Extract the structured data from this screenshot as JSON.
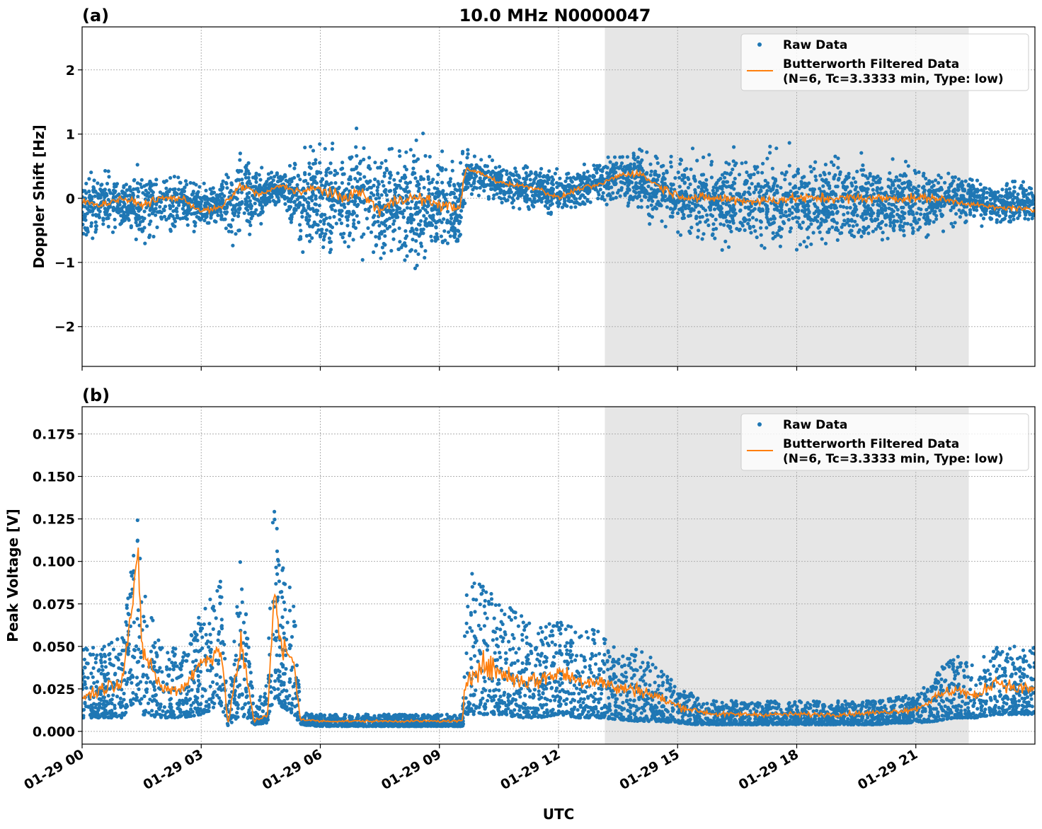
{
  "title": "10.0 MHz N0000047",
  "xlabel": "UTC",
  "colors": {
    "raw": "#1f77b4",
    "filtered": "#ff7f0e",
    "shade": "#e6e6e6"
  },
  "legend": {
    "raw": "Raw Data",
    "filtered_line1": "Butterworth Filtered Data",
    "filtered_line2": "(N=6, Tc=3.3333 min, Type: low)",
    "placement": "top-right"
  },
  "xaxis": {
    "range": [
      "01-29 00:00",
      "01-30 00:00"
    ],
    "ticks": [
      "01-29 00",
      "01-29 03",
      "01-29 06",
      "01-29 09",
      "01-29 12",
      "01-29 15",
      "01-29 18",
      "01-29 21"
    ]
  },
  "chart_data": [
    {
      "type": "scatter+line",
      "panel_label": "(a)",
      "ylabel": "Doppler Shift [Hz]",
      "ylim": [
        -2.62,
        2.67
      ],
      "yticks": [
        "2",
        "1",
        "0",
        "−1",
        "−2"
      ],
      "ytick_values": [
        2,
        1,
        0,
        -1,
        -2
      ],
      "grid": true,
      "shaded_span": [
        "01-29 13:10",
        "01-29 22:20"
      ],
      "x": [
        "00:00",
        "00:30",
        "01:00",
        "01:30",
        "02:00",
        "02:30",
        "03:00",
        "03:30",
        "04:00",
        "04:30",
        "05:00",
        "05:30",
        "06:00",
        "06:30",
        "07:00",
        "07:30",
        "08:00",
        "08:30",
        "09:00",
        "09:30",
        "09:40",
        "10:00",
        "10:30",
        "11:00",
        "11:30",
        "12:00",
        "12:30",
        "13:00",
        "13:30",
        "14:00",
        "14:30",
        "15:00",
        "15:30",
        "16:00",
        "17:00",
        "18:00",
        "19:00",
        "20:00",
        "21:00",
        "21:30",
        "22:00",
        "22:30",
        "23:00",
        "23:30",
        "24:00"
      ],
      "filtered": [
        -0.05,
        -0.1,
        0.0,
        -0.1,
        0.0,
        0.0,
        -0.2,
        -0.15,
        0.2,
        0.05,
        0.2,
        0.1,
        0.15,
        0.0,
        0.1,
        -0.2,
        0.0,
        0.0,
        -0.1,
        -0.15,
        0.45,
        0.4,
        0.25,
        0.2,
        0.15,
        0.0,
        0.15,
        0.2,
        0.35,
        0.4,
        0.2,
        0.05,
        0.0,
        0.0,
        -0.05,
        0.0,
        0.0,
        0.0,
        0.0,
        0.0,
        -0.05,
        -0.1,
        -0.15,
        -0.15,
        -0.2
      ],
      "raw_lower": [
        -0.8,
        -0.8,
        -0.7,
        -0.9,
        -0.7,
        -0.6,
        -0.7,
        -0.6,
        -1.0,
        -0.5,
        -0.2,
        -1.0,
        -1.1,
        -1.1,
        -1.2,
        -1.3,
        -1.3,
        -1.3,
        -1.2,
        -1.1,
        -0.1,
        -0.1,
        -0.2,
        -0.3,
        -0.3,
        -0.4,
        -0.3,
        -0.2,
        -0.2,
        -0.4,
        -0.6,
        -0.8,
        -0.9,
        -1.0,
        -1.0,
        -1.0,
        -1.0,
        -0.9,
        -0.9,
        -0.7,
        -0.6,
        -0.5,
        -0.6,
        -0.6,
        -0.6
      ],
      "raw_upper": [
        0.6,
        0.6,
        0.5,
        0.6,
        0.6,
        0.5,
        0.4,
        0.4,
        0.9,
        0.6,
        0.5,
        1.0,
        1.1,
        1.1,
        1.2,
        1.1,
        1.1,
        1.1,
        1.0,
        0.9,
        0.8,
        0.8,
        0.7,
        0.6,
        0.6,
        0.5,
        0.6,
        0.7,
        0.9,
        1.0,
        0.9,
        0.9,
        0.9,
        0.9,
        0.9,
        0.9,
        0.9,
        0.8,
        0.8,
        0.7,
        0.6,
        0.5,
        0.4,
        0.4,
        0.4
      ]
    },
    {
      "type": "scatter+line",
      "panel_label": "(b)",
      "ylabel": "Peak Voltage [V]",
      "ylim": [
        -0.0075,
        0.191
      ],
      "yticks": [
        "0.000",
        "0.025",
        "0.050",
        "0.075",
        "0.100",
        "0.125",
        "0.150",
        "0.175"
      ],
      "ytick_values": [
        0,
        0.025,
        0.05,
        0.075,
        0.1,
        0.125,
        0.15,
        0.175
      ],
      "grid": true,
      "shaded_span": [
        "01-29 13:10",
        "01-29 22:20"
      ],
      "x": [
        "00:00",
        "00:30",
        "01:00",
        "01:25",
        "01:30",
        "02:00",
        "02:30",
        "03:00",
        "03:30",
        "03:40",
        "04:00",
        "04:20",
        "04:40",
        "04:50",
        "05:00",
        "05:20",
        "05:30",
        "06:00",
        "07:00",
        "08:00",
        "09:00",
        "09:35",
        "09:40",
        "10:00",
        "10:30",
        "11:00",
        "11:30",
        "12:00",
        "12:30",
        "13:00",
        "13:30",
        "14:00",
        "14:30",
        "15:00",
        "15:30",
        "16:00",
        "17:00",
        "18:00",
        "19:00",
        "20:00",
        "20:30",
        "21:00",
        "21:30",
        "22:00",
        "22:30",
        "23:00",
        "23:30",
        "24:00"
      ],
      "filtered": [
        0.02,
        0.025,
        0.03,
        0.1,
        0.05,
        0.025,
        0.025,
        0.04,
        0.05,
        0.004,
        0.05,
        0.006,
        0.01,
        0.08,
        0.05,
        0.04,
        0.007,
        0.006,
        0.006,
        0.006,
        0.006,
        0.006,
        0.03,
        0.04,
        0.035,
        0.03,
        0.03,
        0.035,
        0.03,
        0.03,
        0.025,
        0.025,
        0.02,
        0.015,
        0.012,
        0.01,
        0.01,
        0.01,
        0.01,
        0.011,
        0.012,
        0.013,
        0.02,
        0.025,
        0.02,
        0.03,
        0.025,
        0.025
      ],
      "raw_lower": [
        0.008,
        0.008,
        0.008,
        0.02,
        0.01,
        0.008,
        0.008,
        0.01,
        0.015,
        0.003,
        0.01,
        0.004,
        0.005,
        0.02,
        0.015,
        0.01,
        0.004,
        0.003,
        0.003,
        0.003,
        0.003,
        0.003,
        0.01,
        0.01,
        0.01,
        0.008,
        0.008,
        0.01,
        0.008,
        0.008,
        0.007,
        0.006,
        0.006,
        0.005,
        0.004,
        0.004,
        0.004,
        0.004,
        0.004,
        0.004,
        0.005,
        0.005,
        0.006,
        0.008,
        0.008,
        0.01,
        0.01,
        0.01
      ],
      "raw_upper": [
        0.05,
        0.05,
        0.06,
        0.13,
        0.09,
        0.05,
        0.05,
        0.07,
        0.09,
        0.01,
        0.11,
        0.012,
        0.03,
        0.15,
        0.1,
        0.08,
        0.011,
        0.01,
        0.01,
        0.01,
        0.01,
        0.01,
        0.1,
        0.09,
        0.08,
        0.07,
        0.06,
        0.07,
        0.06,
        0.06,
        0.05,
        0.05,
        0.04,
        0.03,
        0.02,
        0.018,
        0.018,
        0.018,
        0.018,
        0.018,
        0.02,
        0.022,
        0.035,
        0.045,
        0.04,
        0.05,
        0.05,
        0.05
      ]
    }
  ]
}
